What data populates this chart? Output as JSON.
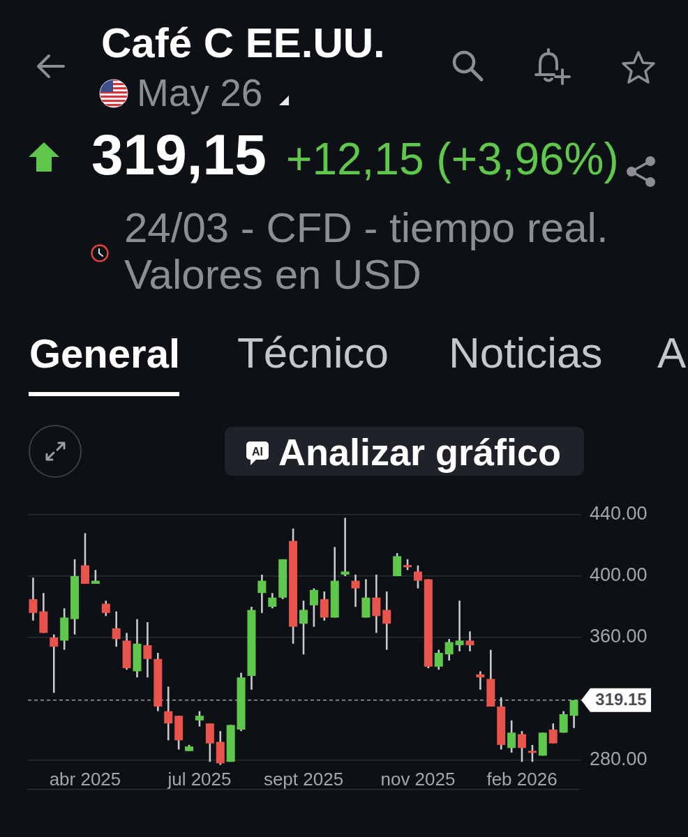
{
  "chart_data": {
    "type": "candlestick",
    "title": "Café C EE.UU.",
    "subtitle": "May 26",
    "annotations": [
      "319,15",
      "+12,15 (+3,96%)",
      "24/03 - CFD - tiempo real. Valores en USD",
      "General",
      "Técnico",
      "Noticias",
      "A",
      "AI",
      "Analizar gráfico"
    ],
    "categories": [
      null,
      null,
      null,
      null,
      null,
      "abr 2025",
      null,
      null,
      null,
      null,
      null,
      null,
      null,
      null,
      null,
      null,
      "jul 2025",
      null,
      null,
      null,
      null,
      null,
      null,
      null,
      null,
      null,
      "sept 2025",
      null,
      null,
      null,
      null,
      null,
      null,
      null,
      null,
      null,
      null,
      "nov 2025",
      null,
      null,
      null,
      null,
      null,
      null,
      null,
      null,
      null,
      "feb 2026",
      null,
      null,
      null,
      null,
      null
    ],
    "ohlc": [
      [
        385,
        399,
        371,
        376
      ],
      [
        377,
        389,
        363,
        363
      ],
      [
        360,
        362,
        324,
        354
      ],
      [
        358,
        379,
        352,
        373
      ],
      [
        372,
        411,
        362,
        400
      ],
      [
        407,
        428,
        395,
        395
      ],
      [
        395,
        404,
        395,
        397
      ],
      [
        382,
        384,
        374,
        376
      ],
      [
        366,
        377,
        354,
        359
      ],
      [
        358,
        363,
        339,
        340
      ],
      [
        338,
        372,
        334,
        356
      ],
      [
        355,
        370,
        334,
        346
      ],
      [
        346,
        350,
        312,
        315
      ],
      [
        312,
        328,
        293,
        304
      ],
      [
        309,
        309,
        287,
        293
      ],
      [
        286,
        290,
        286,
        289
      ],
      [
        306,
        312,
        302,
        309
      ],
      [
        304,
        304,
        279,
        291
      ],
      [
        292,
        299,
        277,
        278
      ],
      [
        279,
        303,
        279,
        303
      ],
      [
        300,
        337,
        299,
        334
      ],
      [
        335,
        380,
        326,
        378
      ],
      [
        389,
        401,
        376,
        397
      ],
      [
        380,
        389,
        379,
        386
      ],
      [
        386,
        411,
        385,
        411
      ],
      [
        423,
        431,
        356,
        367
      ],
      [
        369,
        384,
        349,
        378
      ],
      [
        381,
        392,
        367,
        391
      ],
      [
        385,
        390,
        371,
        373
      ],
      [
        373,
        419,
        373,
        397
      ],
      [
        401,
        438,
        400,
        403
      ],
      [
        397,
        401,
        380,
        392
      ],
      [
        373,
        398,
        373,
        386
      ],
      [
        386,
        401,
        363,
        374
      ],
      [
        378,
        390,
        352,
        369
      ],
      [
        400,
        415,
        400,
        413
      ],
      [
        407,
        411,
        404,
        406
      ],
      [
        403,
        407,
        392,
        397
      ],
      [
        398,
        398,
        340,
        341
      ],
      [
        341,
        352,
        339,
        350
      ],
      [
        349,
        359,
        345,
        357
      ],
      [
        355,
        384,
        351,
        358
      ],
      [
        358,
        364,
        351,
        355
      ],
      [
        336,
        338,
        326,
        334
      ],
      [
        333,
        352,
        315,
        315
      ],
      [
        315,
        321,
        287,
        290
      ],
      [
        288,
        306,
        285,
        298
      ],
      [
        297,
        299,
        279,
        288
      ],
      [
        286,
        290,
        279,
        285
      ],
      [
        283,
        298,
        283,
        298
      ],
      [
        300,
        304,
        291,
        291
      ],
      [
        298,
        312,
        298,
        310
      ],
      [
        309,
        319.15,
        301,
        319.15
      ]
    ],
    "colors": [
      "#e8534b",
      "#e8534b",
      "#e8534b",
      "#5fc84c",
      "#5fc84c",
      "#e8534b",
      "#5fc84c",
      "#e8534b",
      "#e8534b",
      "#e8534b",
      "#5fc84c",
      "#e8534b",
      "#e8534b",
      "#e8534b",
      "#e8534b",
      "#5fc84c",
      "#5fc84c",
      "#e8534b",
      "#e8534b",
      "#5fc84c",
      "#5fc84c",
      "#5fc84c",
      "#5fc84c",
      "#5fc84c",
      "#5fc84c",
      "#e8534b",
      "#5fc84c",
      "#5fc84c",
      "#e8534b",
      "#5fc84c",
      "#5fc84c",
      "#e8534b",
      "#5fc84c",
      "#e8534b",
      "#e8534b",
      "#5fc84c",
      "#e8534b",
      "#e8534b",
      "#e8534b",
      "#5fc84c",
      "#5fc84c",
      "#5fc84c",
      "#e8534b",
      "#e8534b",
      "#e8534b",
      "#e8534b",
      "#5fc84c",
      "#e8534b",
      "#e8534b",
      "#5fc84c",
      "#e8534b",
      "#5fc84c",
      "#5fc84c"
    ],
    "ylim": [
      261,
      440
    ],
    "yticks": [
      {
        "value": 280,
        "label": "280.00"
      },
      {
        "value": 360,
        "label": "360.00"
      },
      {
        "value": 400,
        "label": "400.00"
      },
      {
        "value": 440,
        "label": "440.00"
      }
    ],
    "grid": "y",
    "ref_lines": [
      {
        "axis": "y",
        "value": 319.15,
        "label": "319.15",
        "color": "#9aa0a6",
        "line_style": "dashed"
      }
    ]
  }
}
